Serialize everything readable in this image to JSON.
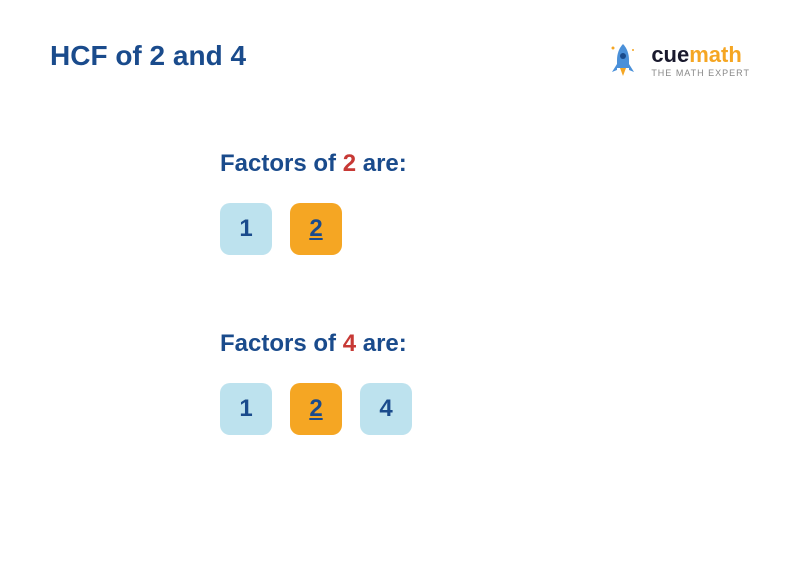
{
  "colors": {
    "primary_blue": "#1a4b8c",
    "accent_red": "#c73935",
    "light_blue_box": "#bde2ee",
    "amber_box": "#f5a623",
    "logo_cue": "#1a1a2e",
    "logo_math": "#f5a623",
    "tagline_gray": "#999",
    "rocket_blue": "#4a90d9",
    "rocket_flame": "#f5a623"
  },
  "title": {
    "prefix": "HCF of ",
    "num1": "2",
    "connector": " and ",
    "num2": "4"
  },
  "logo": {
    "cue": "cue",
    "math": "math",
    "tagline": "THE MATH EXPERT"
  },
  "section1": {
    "heading_prefix": "Factors of ",
    "heading_number": "2",
    "heading_suffix": " are:",
    "factors": [
      {
        "value": "1",
        "highlighted": false
      },
      {
        "value": "2",
        "highlighted": true
      }
    ]
  },
  "section2": {
    "heading_prefix": "Factors of ",
    "heading_number": "4",
    "heading_suffix": " are:",
    "factors": [
      {
        "value": "1",
        "highlighted": false
      },
      {
        "value": "2",
        "highlighted": true
      },
      {
        "value": "4",
        "highlighted": false
      }
    ]
  },
  "styling": {
    "title_fontsize": 28,
    "heading_fontsize": 24,
    "box_fontsize": 24,
    "box_size": 52,
    "box_radius": 10
  }
}
